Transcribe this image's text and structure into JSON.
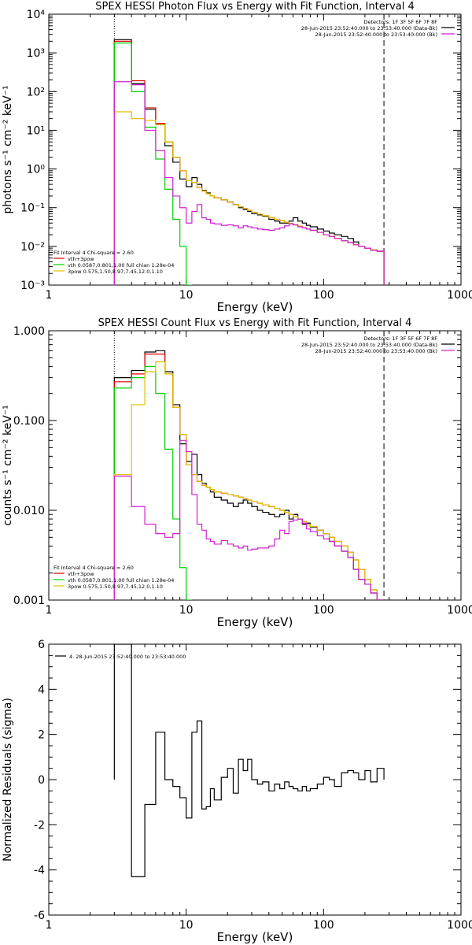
{
  "chart_data": [
    {
      "type": "line",
      "title": "SPEX HESSI Photon Flux vs Energy with Fit Function, Interval 4",
      "xlabel": "Energy (keV)",
      "ylabel": "photons s⁻¹ cm⁻² keV⁻¹",
      "xscale": "log",
      "yscale": "log",
      "xlim": [
        1,
        1000
      ],
      "ylim": [
        0.001,
        10000
      ],
      "xticks": [
        1,
        10,
        100,
        1000
      ],
      "xtick_labels": [
        "1",
        "10",
        "100",
        "1000"
      ],
      "yticks": [
        0.001,
        0.01,
        0.1,
        1,
        10,
        100,
        1000,
        10000
      ],
      "ytick_labels": [
        "10⁻³",
        "10⁻²",
        "10⁻¹",
        "10⁰",
        "10¹",
        "10²",
        "10³",
        "10⁴"
      ],
      "legend_top_right": [
        "Detectors: 1F 3F 5F 6F 7F 8F",
        "28-Jun-2015 23:52:40.000 to 23:53:40.000 (Data-Bk)",
        "28-Jun-2015 23:52:40.000 to 23:53:40.000 (Bk)"
      ],
      "legend_top_right_colors": [
        "#000000",
        "#000000",
        "#d020d0"
      ],
      "legend_bottom_left": [
        "Fit Interval 4   Chi-square = 2.60",
        "vth+3pow",
        "vth 0.0587,0.801,1.00  full chian 1.28e-04",
        "3pow 0.575,1.50,8.97,7.45,12.0,1.10"
      ],
      "legend_bottom_left_colors": [
        "#000000",
        "#e00000",
        "#00d000",
        "#e0c000"
      ],
      "vlines": [
        3,
        275
      ],
      "x_edges": [
        3,
        4,
        5,
        6,
        7,
        8,
        9,
        10,
        11,
        12,
        13,
        14,
        15,
        16,
        18,
        20,
        22,
        24,
        26,
        28,
        30,
        33,
        36,
        40,
        44,
        48,
        52,
        56,
        60,
        65,
        70,
        75,
        80,
        90,
        100,
        110,
        120,
        135,
        150,
        165,
        180,
        200,
        220,
        245,
        275
      ],
      "series": [
        {
          "name": "Data-Bk",
          "color": "#000000",
          "values": [
            2200,
            160,
            35,
            14,
            4,
            1.5,
            0.55,
            0.35,
            0.6,
            0.4,
            0.28,
            0.24,
            0.2,
            0.18,
            0.16,
            0.14,
            0.12,
            0.1,
            0.09,
            0.08,
            0.07,
            0.065,
            0.06,
            0.05,
            0.045,
            0.04,
            0.04,
            0.045,
            0.055,
            0.045,
            0.04,
            0.035,
            0.032,
            0.028,
            0.025,
            0.022,
            0.02,
            0.018,
            0.016,
            0.013,
            0.01,
            0.009,
            0.008,
            0.0075
          ]
        },
        {
          "name": "vth+3pow",
          "color": "#e00000",
          "values": [
            2000,
            190,
            38,
            15,
            5,
            2,
            0.9,
            0.5,
            0.45,
            0.33,
            0.27,
            0.23,
            0.2,
            0.18,
            0.16,
            0.14,
            0.12,
            0.105,
            0.095,
            0.085,
            0.076,
            0.068,
            0.062,
            0.056,
            0.05,
            0.046,
            0.042,
            0.039,
            0.036,
            0.033,
            0.03,
            0.028,
            0.026,
            0.023,
            0.02,
            0.018,
            0.016,
            0.014,
            0.0125,
            0.011,
            0.01,
            0.009,
            0.0082,
            0.0075
          ]
        },
        {
          "name": "vth",
          "color": "#00d000",
          "values": [
            1800,
            100,
            12,
            1.8,
            0.3,
            0.05,
            0.01,
            0.001
          ]
        },
        {
          "name": "3pow",
          "color": "#e0c000",
          "values": [
            30,
            20,
            18,
            14,
            5,
            2,
            0.9,
            0.5,
            0.45,
            0.33,
            0.27,
            0.23,
            0.2,
            0.18,
            0.16,
            0.14,
            0.12,
            0.105,
            0.095,
            0.085,
            0.076,
            0.068,
            0.062,
            0.056,
            0.05,
            0.046,
            0.042,
            0.039,
            0.036,
            0.033,
            0.03,
            0.028,
            0.026,
            0.023,
            0.02,
            0.018,
            0.016,
            0.014,
            0.0125,
            0.011,
            0.01,
            0.009,
            0.0082,
            0.0075
          ]
        },
        {
          "name": "Bk",
          "color": "#d020d0",
          "values": [
            180,
            150,
            10,
            3,
            0.6,
            0.2,
            0.1,
            0.04,
            0.08,
            0.12,
            0.055,
            0.05,
            0.04,
            0.038,
            0.035,
            0.036,
            0.034,
            0.03,
            0.034,
            0.032,
            0.03,
            0.028,
            0.027,
            0.026,
            0.028,
            0.03,
            0.034,
            0.038,
            0.036,
            0.032,
            0.03,
            0.028,
            0.026,
            0.023,
            0.02,
            0.018,
            0.016,
            0.014,
            0.0125,
            0.011,
            0.01,
            0.009,
            0.008,
            0.0075
          ]
        }
      ]
    },
    {
      "type": "line",
      "title": "SPEX HESSI Count Flux vs Energy with Fit Function, Interval 4",
      "xlabel": "Energy (keV)",
      "ylabel": "counts s⁻¹ cm⁻² keV⁻¹",
      "xscale": "log",
      "yscale": "log",
      "xlim": [
        1,
        1000
      ],
      "ylim": [
        0.001,
        1
      ],
      "xticks": [
        1,
        10,
        100,
        1000
      ],
      "xtick_labels": [
        "1",
        "10",
        "100",
        "1000"
      ],
      "yticks": [
        0.001,
        0.01,
        0.1,
        1
      ],
      "ytick_labels": [
        "0.001",
        "0.010",
        "0.100",
        "1.000"
      ],
      "legend_top_right": [
        "Detectors: 1F 3F 5F 6F 7F 8F",
        "28-Jun-2015 23:52:40.000 to 23:53:40.000 (Data-Bk)",
        "28-Jun-2015 23:52:40.000 to 23:53:40.000 (Bk)"
      ],
      "legend_top_right_colors": [
        "#000000",
        "#000000",
        "#d020d0"
      ],
      "legend_bottom_left": [
        "Fit Interval 4   Chi-square = 2.60",
        "vth+3pow",
        "vth 0.0587,0.801,1.00  full chian 1.28e-04",
        "3pow 0.575,1.50,8.97,7.45,12.0,1.10"
      ],
      "legend_bottom_left_colors": [
        "#000000",
        "#e00000",
        "#00d000",
        "#e0c000"
      ],
      "vlines": [
        3,
        275
      ],
      "x_edges": [
        3,
        4,
        5,
        6,
        7,
        8,
        9,
        10,
        11,
        12,
        13,
        14,
        15,
        16,
        18,
        20,
        22,
        24,
        26,
        28,
        30,
        33,
        36,
        40,
        44,
        48,
        52,
        56,
        60,
        65,
        70,
        75,
        80,
        90,
        100,
        110,
        120,
        135,
        150,
        165,
        180,
        200,
        220,
        245,
        275
      ],
      "series": [
        {
          "name": "Data-Bk",
          "color": "#000000",
          "values": [
            0.3,
            0.36,
            0.58,
            0.6,
            0.35,
            0.15,
            0.055,
            0.035,
            0.042,
            0.025,
            0.02,
            0.018,
            0.016,
            0.014,
            0.013,
            0.012,
            0.011,
            0.012,
            0.013,
            0.012,
            0.011,
            0.01,
            0.0095,
            0.009,
            0.0085,
            0.009,
            0.01,
            0.008,
            0.009,
            0.008,
            0.007,
            0.0072,
            0.0065,
            0.006,
            0.0055,
            0.0045,
            0.004,
            0.0035,
            0.003,
            0.0022,
            0.0017,
            0.0015,
            0.0012,
            0.0009
          ]
        },
        {
          "name": "vth+3pow",
          "color": "#e00000",
          "values": [
            0.27,
            0.33,
            0.55,
            0.55,
            0.33,
            0.14,
            0.07,
            0.032,
            0.025,
            0.021,
            0.019,
            0.018,
            0.017,
            0.016,
            0.0155,
            0.015,
            0.0145,
            0.014,
            0.0135,
            0.013,
            0.0125,
            0.012,
            0.0115,
            0.011,
            0.0105,
            0.01,
            0.0095,
            0.009,
            0.0085,
            0.008,
            0.0075,
            0.007,
            0.0066,
            0.006,
            0.0055,
            0.005,
            0.0045,
            0.004,
            0.0034,
            0.0028,
            0.0022,
            0.0017,
            0.0013,
            0.001
          ]
        },
        {
          "name": "vth",
          "color": "#00d000",
          "values": [
            0.23,
            0.3,
            0.4,
            0.2,
            0.048,
            0.008,
            0.0023,
            0.001
          ]
        },
        {
          "name": "3pow",
          "color": "#e0c000",
          "values": [
            0.025,
            0.15,
            0.35,
            0.45,
            0.33,
            0.14,
            0.07,
            0.032,
            0.025,
            0.021,
            0.019,
            0.018,
            0.017,
            0.016,
            0.0155,
            0.015,
            0.0145,
            0.014,
            0.0135,
            0.013,
            0.0125,
            0.012,
            0.0115,
            0.011,
            0.0105,
            0.01,
            0.0095,
            0.009,
            0.0085,
            0.008,
            0.0075,
            0.007,
            0.0066,
            0.006,
            0.0055,
            0.005,
            0.0045,
            0.004,
            0.0034,
            0.0028,
            0.0022,
            0.0017,
            0.0013,
            0.001
          ]
        },
        {
          "name": "Bk",
          "color": "#d020d0",
          "values": [
            0.024,
            0.011,
            0.007,
            0.0055,
            0.005,
            0.0055,
            0.06,
            0.045,
            0.015,
            0.007,
            0.006,
            0.0048,
            0.0045,
            0.0042,
            0.0046,
            0.0042,
            0.004,
            0.0038,
            0.004,
            0.0036,
            0.0037,
            0.0038,
            0.0038,
            0.004,
            0.0048,
            0.006,
            0.0055,
            0.0075,
            0.0078,
            0.008,
            0.0072,
            0.0062,
            0.0058,
            0.0052,
            0.0048,
            0.0045,
            0.004,
            0.0035,
            0.003,
            0.0022,
            0.0017,
            0.0015,
            0.0012,
            0.0009
          ]
        }
      ]
    },
    {
      "type": "line",
      "title": "",
      "xlabel": "Energy (keV)",
      "ylabel": "Normalized Residuals (sigma)",
      "xscale": "log",
      "yscale": "linear",
      "xlim": [
        1,
        1000
      ],
      "ylim": [
        -6,
        6
      ],
      "xticks": [
        1,
        10,
        100,
        1000
      ],
      "xtick_labels": [
        "1",
        "10",
        "100",
        "1000"
      ],
      "yticks": [
        -6,
        -4,
        -2,
        0,
        2,
        4,
        6
      ],
      "ytick_labels": [
        "-6",
        "-4",
        "-2",
        "0",
        "2",
        "4",
        "6"
      ],
      "legend": "4. 28-Jun-2015 23:52:40.000 to 23:53:40.000",
      "x_edges": [
        3,
        4,
        5,
        6,
        7,
        8,
        9,
        10,
        11,
        12,
        13,
        14,
        15,
        16,
        18,
        20,
        22,
        24,
        26,
        28,
        30,
        33,
        36,
        40,
        44,
        48,
        52,
        56,
        60,
        65,
        70,
        75,
        80,
        90,
        100,
        110,
        120,
        135,
        150,
        165,
        180,
        200,
        220,
        245,
        275
      ],
      "series": [
        {
          "name": "4. 28-Jun-2015 23:52:40.000 to 23:53:40.000",
          "color": "#000000",
          "values": [
            6,
            -4.3,
            -1.1,
            2.1,
            0,
            -0.3,
            -0.8,
            -1.7,
            2.1,
            2.6,
            -1.3,
            -1.2,
            -0.4,
            -0.9,
            0.1,
            0.5,
            -0.6,
            0.9,
            0.4,
            0.9,
            0,
            -0.2,
            -0.1,
            -0.5,
            -0.2,
            -0.4,
            -0.1,
            -0.3,
            -0.4,
            -0.5,
            -0.3,
            -0.5,
            -0.4,
            -0.2,
            0.1,
            0,
            -0.3,
            0.3,
            0.4,
            0.3,
            0,
            0.4,
            -0.1,
            0.5
          ]
        }
      ]
    }
  ]
}
